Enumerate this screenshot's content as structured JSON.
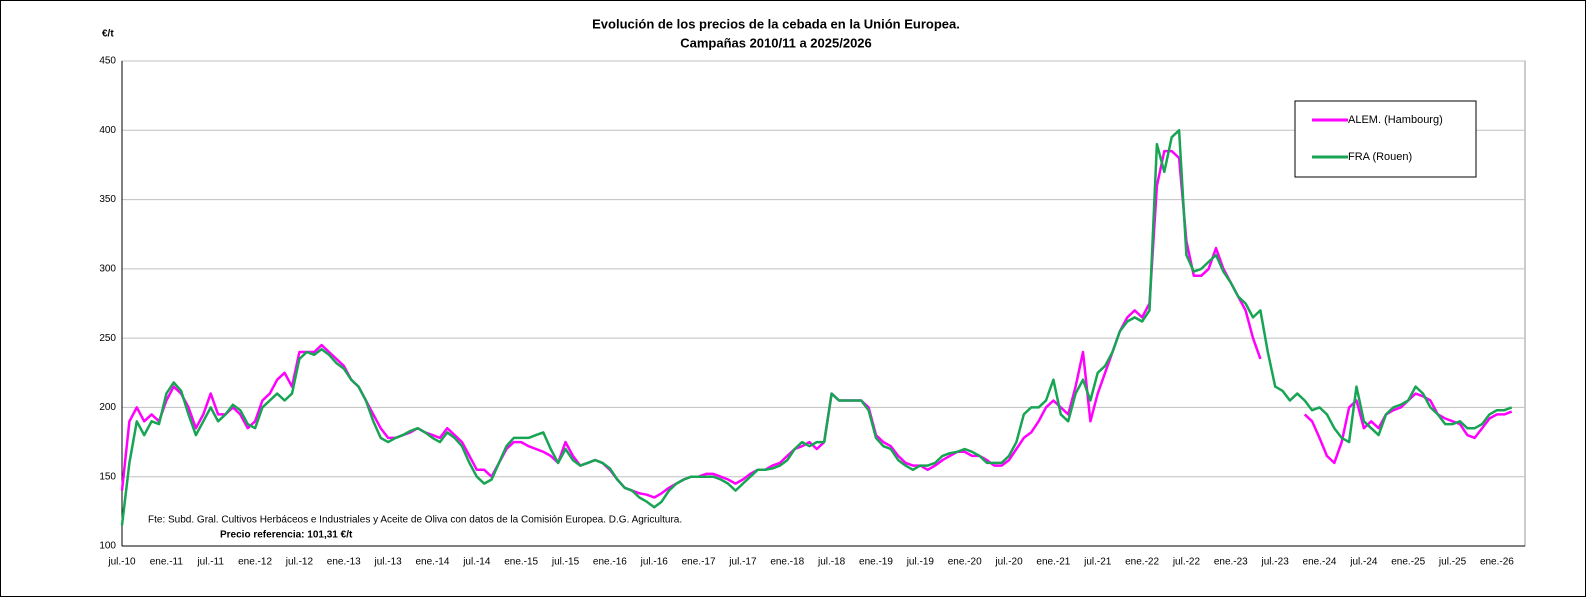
{
  "chart_data": {
    "type": "line",
    "title": [
      "Evolución de los precios de la cebada en la Unión Europea.",
      "Campañas 2010/11 a 2025/2026"
    ],
    "y_label": "€/t",
    "note": "Fte: Subd. Gral. Cultivos Herbáceos e Industriales y Aceite de Oliva con datos de la Comisión Europea. D.G. Agricultura.",
    "reference": "Precio referencia: 101,31 €/t",
    "categories": [
      "jul.-10",
      null,
      null,
      null,
      null,
      null,
      "ene.-11",
      null,
      null,
      null,
      null,
      null,
      "jul.-11",
      null,
      null,
      null,
      null,
      null,
      "ene.-12",
      null,
      null,
      null,
      null,
      null,
      "jul.-12",
      null,
      null,
      null,
      null,
      null,
      "ene.-13",
      null,
      null,
      null,
      null,
      null,
      "jul.-13",
      null,
      null,
      null,
      null,
      null,
      "ene.-14",
      null,
      null,
      null,
      null,
      null,
      "jul.-14",
      null,
      null,
      null,
      null,
      null,
      "ene.-15",
      null,
      null,
      null,
      null,
      null,
      "jul.-15",
      null,
      null,
      null,
      null,
      null,
      "ene.-16",
      null,
      null,
      null,
      null,
      null,
      "jul.-16",
      null,
      null,
      null,
      null,
      null,
      "ene.-17",
      null,
      null,
      null,
      null,
      null,
      "jul.-17",
      null,
      null,
      null,
      null,
      null,
      "ene.-18",
      null,
      null,
      null,
      null,
      null,
      "jul.-18",
      null,
      null,
      null,
      null,
      null,
      "ene.-19",
      null,
      null,
      null,
      null,
      null,
      "jul.-19",
      null,
      null,
      null,
      null,
      null,
      "ene.-20",
      null,
      null,
      null,
      null,
      null,
      "jul.-20",
      null,
      null,
      null,
      null,
      null,
      "ene.-21",
      null,
      null,
      null,
      null,
      null,
      "jul.-21",
      null,
      null,
      null,
      null,
      null,
      "ene.-22",
      null,
      null,
      null,
      null,
      null,
      "jul.-22",
      null,
      null,
      null,
      null,
      null,
      "ene.-23",
      null,
      null,
      null,
      null,
      null,
      "jul.-23",
      null,
      null,
      null,
      null,
      null,
      "ene.-24",
      null,
      null,
      null,
      null,
      null,
      "jul.-24",
      null,
      null,
      null,
      null,
      null,
      "ene.-25",
      null,
      null,
      null,
      null,
      null,
      "jul.-25",
      null,
      null,
      null,
      null,
      null,
      "ene.-26",
      null,
      null
    ],
    "series": [
      {
        "name": "ALEM. (Hambourg)",
        "color": "#ff00ff",
        "values": [
          140,
          190,
          200,
          190,
          195,
          190,
          205,
          215,
          210,
          200,
          185,
          195,
          210,
          195,
          195,
          200,
          195,
          185,
          190,
          205,
          210,
          220,
          225,
          215,
          240,
          240,
          240,
          245,
          240,
          235,
          230,
          220,
          215,
          205,
          195,
          185,
          178,
          178,
          180,
          182,
          185,
          182,
          180,
          178,
          185,
          180,
          175,
          165,
          155,
          155,
          150,
          160,
          170,
          175,
          175,
          172,
          170,
          168,
          165,
          160,
          175,
          165,
          158,
          160,
          162,
          160,
          155,
          148,
          142,
          140,
          138,
          137,
          135,
          138,
          142,
          145,
          148,
          150,
          150,
          152,
          152,
          150,
          148,
          145,
          148,
          152,
          155,
          155,
          158,
          160,
          165,
          170,
          172,
          175,
          170,
          175,
          210,
          205,
          205,
          205,
          205,
          200,
          180,
          175,
          172,
          165,
          160,
          158,
          158,
          155,
          158,
          162,
          165,
          168,
          168,
          165,
          165,
          162,
          158,
          158,
          162,
          170,
          178,
          182,
          190,
          200,
          205,
          200,
          195,
          215,
          240,
          190,
          210,
          225,
          240,
          255,
          265,
          270,
          265,
          275,
          360,
          385,
          385,
          380,
          320,
          295,
          295,
          300,
          315,
          300,
          290,
          280,
          270,
          250,
          235,
          null,
          null,
          null,
          null,
          null,
          195,
          190,
          178,
          165,
          160,
          175,
          200,
          205,
          185,
          190,
          185,
          195,
          198,
          200,
          205,
          210,
          208,
          205,
          195,
          192,
          190,
          188,
          180,
          178,
          185,
          192,
          195,
          195,
          197
        ]
      },
      {
        "name": "FRA (Rouen)",
        "color": "#17a554",
        "values": [
          115,
          160,
          190,
          180,
          190,
          188,
          210,
          218,
          212,
          195,
          180,
          190,
          200,
          190,
          195,
          202,
          198,
          188,
          185,
          200,
          205,
          210,
          205,
          210,
          235,
          240,
          238,
          242,
          238,
          232,
          228,
          220,
          215,
          205,
          190,
          178,
          175,
          178,
          180,
          183,
          185,
          182,
          178,
          175,
          182,
          178,
          172,
          160,
          150,
          145,
          148,
          160,
          172,
          178,
          178,
          178,
          180,
          182,
          170,
          160,
          170,
          162,
          158,
          160,
          162,
          160,
          156,
          148,
          142,
          140,
          135,
          132,
          128,
          132,
          140,
          145,
          148,
          150,
          150,
          150,
          150,
          148,
          145,
          140,
          145,
          150,
          155,
          155,
          156,
          158,
          162,
          170,
          175,
          172,
          175,
          175,
          210,
          205,
          205,
          205,
          205,
          198,
          178,
          172,
          170,
          162,
          158,
          155,
          158,
          158,
          160,
          165,
          167,
          168,
          170,
          168,
          165,
          160,
          160,
          160,
          165,
          175,
          195,
          200,
          200,
          205,
          220,
          195,
          190,
          210,
          220,
          205,
          225,
          230,
          240,
          255,
          262,
          265,
          262,
          270,
          390,
          370,
          395,
          400,
          310,
          298,
          300,
          305,
          310,
          298,
          290,
          280,
          275,
          265,
          270,
          240,
          215,
          212,
          205,
          210,
          205,
          198,
          200,
          195,
          185,
          178,
          175,
          215,
          190,
          185,
          180,
          195,
          200,
          202,
          205,
          215,
          210,
          200,
          195,
          188,
          188,
          190,
          185,
          185,
          188,
          195,
          198,
          198,
          200
        ]
      }
    ],
    "ylim": [
      100,
      450
    ],
    "yticks": [
      100,
      150,
      200,
      250,
      300,
      350,
      400,
      450
    ],
    "grid": true
  }
}
